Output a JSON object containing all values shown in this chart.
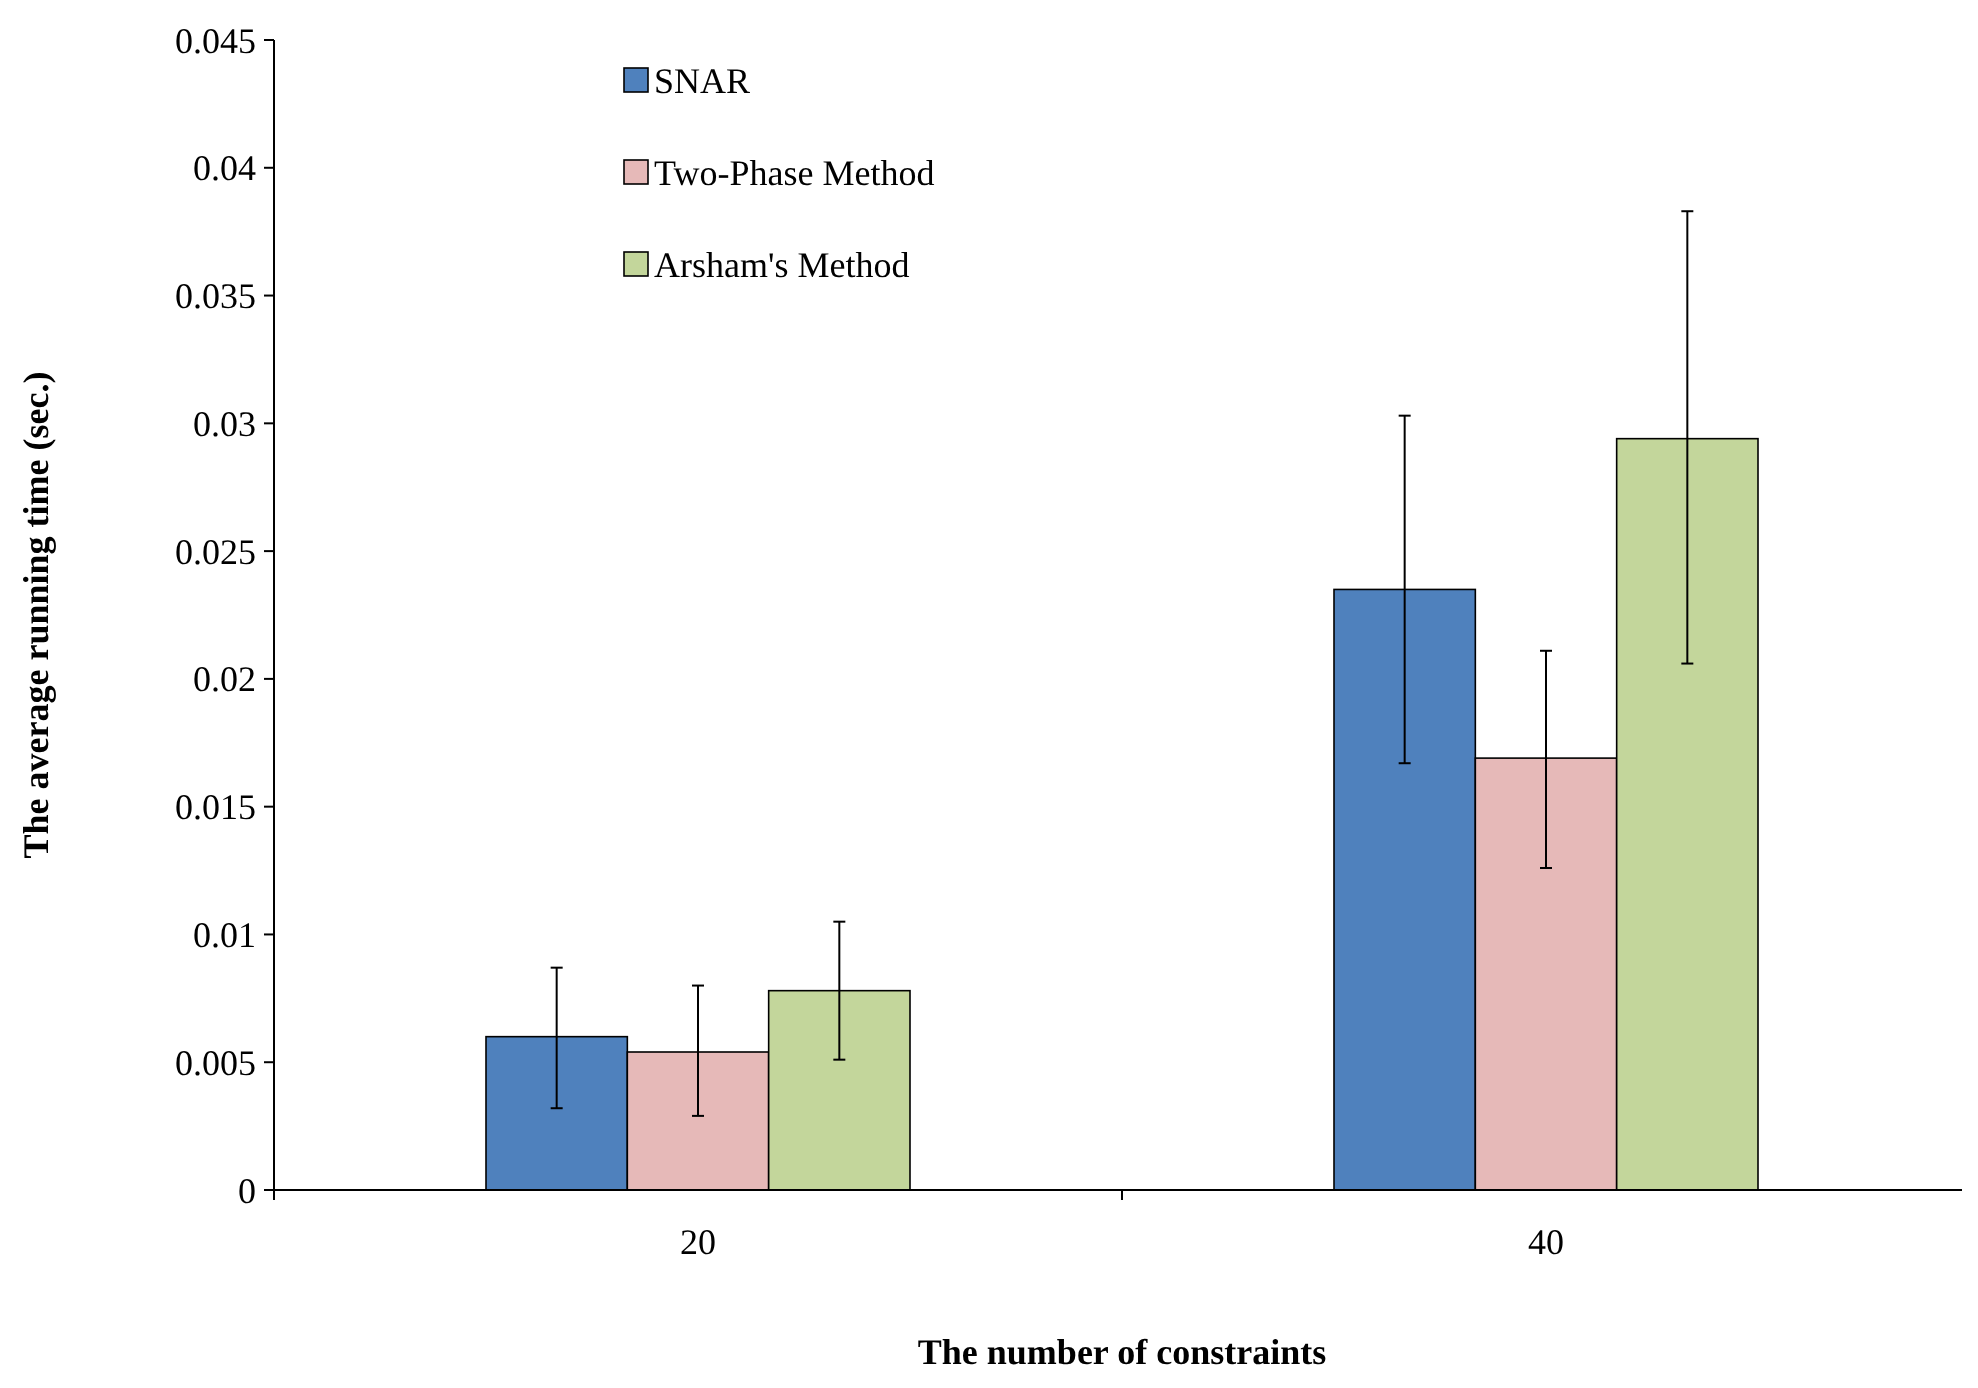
{
  "chart_data": {
    "type": "bar",
    "xlabel": "The number of constraints",
    "ylabel": "The average running time (sec.)",
    "categories": [
      "20",
      "40"
    ],
    "series": [
      {
        "name": "SNAR",
        "color": "#4f81bd",
        "values": [
          0.006,
          0.0235
        ],
        "errors": [
          [
            0.0032,
            0.0087
          ],
          [
            0.0167,
            0.0303
          ]
        ]
      },
      {
        "name": "Two-Phase  Method",
        "color": "#e6b9b8",
        "values": [
          0.0054,
          0.0169
        ],
        "errors": [
          [
            0.0029,
            0.008
          ],
          [
            0.0126,
            0.0211
          ]
        ]
      },
      {
        "name": "Arsham's Method",
        "color": "#c3d69b",
        "values": [
          0.0078,
          0.0294
        ],
        "errors": [
          [
            0.0051,
            0.0105
          ],
          [
            0.0206,
            0.0383
          ]
        ]
      }
    ],
    "ylim": [
      0,
      0.045
    ],
    "yticks": [
      0,
      0.005,
      0.01,
      0.015,
      0.02,
      0.025,
      0.03,
      0.035,
      0.04,
      0.045
    ],
    "grid": false,
    "legend": "top left"
  }
}
